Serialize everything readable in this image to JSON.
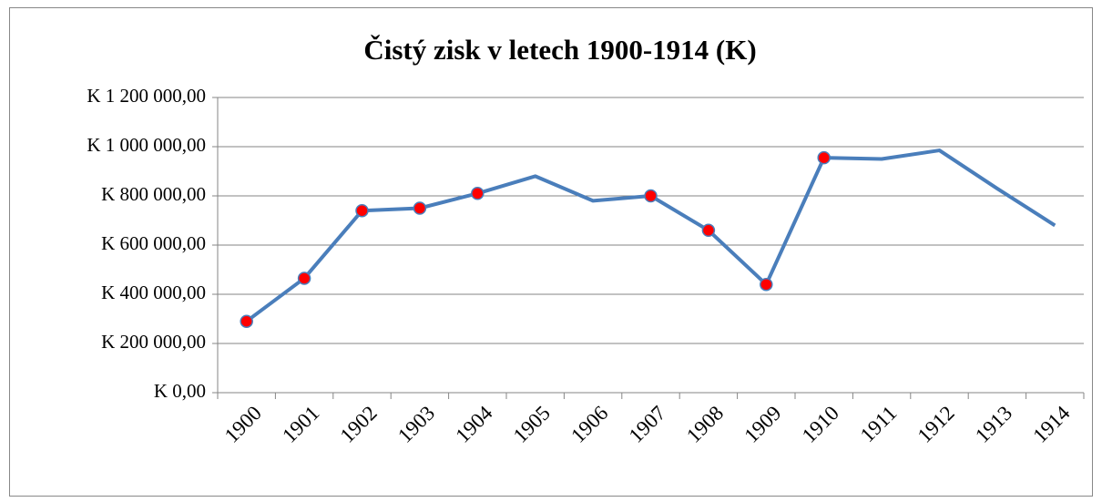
{
  "chart_data": {
    "type": "line",
    "title": "Čistý zisk v letech 1900-1914 (K)",
    "categories": [
      "1900",
      "1901",
      "1902",
      "1903",
      "1904",
      "1905",
      "1906",
      "1907",
      "1908",
      "1909",
      "1910",
      "1911",
      "1912",
      "1913",
      "1914"
    ],
    "series": [
      {
        "color": "#4a7ebb",
        "marker_color": "#ff0000",
        "values": [
          290000,
          465000,
          740000,
          750000,
          810000,
          880000,
          780000,
          800000,
          660000,
          440000,
          955000,
          950000,
          985000,
          830000,
          680000
        ],
        "markers": [
          true,
          true,
          true,
          true,
          true,
          false,
          false,
          true,
          true,
          true,
          true,
          false,
          false,
          false,
          false
        ]
      }
    ],
    "ylim": [
      0,
      1200000
    ],
    "yticks": [
      {
        "value": 0,
        "label": "K 0,00"
      },
      {
        "value": 200000,
        "label": "K 200 000,00"
      },
      {
        "value": 400000,
        "label": "K 400 000,00"
      },
      {
        "value": 600000,
        "label": "K 600 000,00"
      },
      {
        "value": 800000,
        "label": "K 800 000,00"
      },
      {
        "value": 1000000,
        "label": "K 1 000 000,00"
      },
      {
        "value": 1200000,
        "label": "K 1 200 000,00"
      }
    ],
    "grid": true
  }
}
